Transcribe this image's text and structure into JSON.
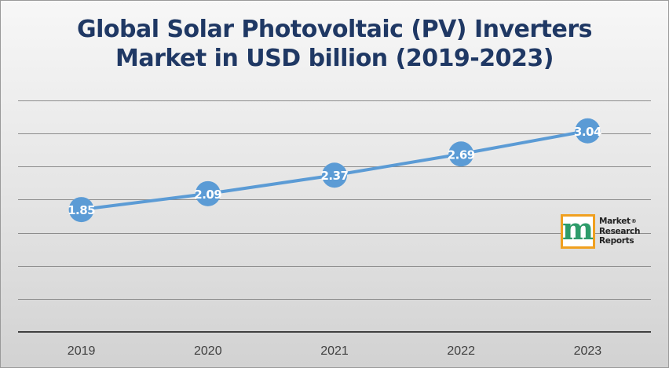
{
  "title_line1": "Global Solar Photovoltaic (PV) Inverters",
  "title_line2": "Market in USD billion (2019-2023)",
  "logo": {
    "mark": "m",
    "line1": "Market",
    "line2": "Research",
    "line3": "Reports",
    "registered": "®"
  },
  "colors": {
    "title": "#1f3864",
    "series": "#5b9bd5",
    "label": "#ffffff",
    "axis": "#404040",
    "grid": "#8c8c8c"
  },
  "chart_data": {
    "type": "line",
    "title": "Global Solar Photovoltaic (PV) Inverters Market in USD billion (2019-2023)",
    "categories": [
      "2019",
      "2020",
      "2021",
      "2022",
      "2023"
    ],
    "series": [
      {
        "values": [
          1.85,
          2.09,
          2.37,
          2.69,
          3.04
        ]
      }
    ],
    "data_labels": [
      "1.85",
      "2.09",
      "2.37",
      "2.69",
      "3.04"
    ],
    "ylim": [
      0,
      3.5
    ],
    "y_grid_step": 0.5,
    "y_tick_labels_shown": false,
    "grid": true,
    "legend": "none",
    "markers": "circle"
  }
}
